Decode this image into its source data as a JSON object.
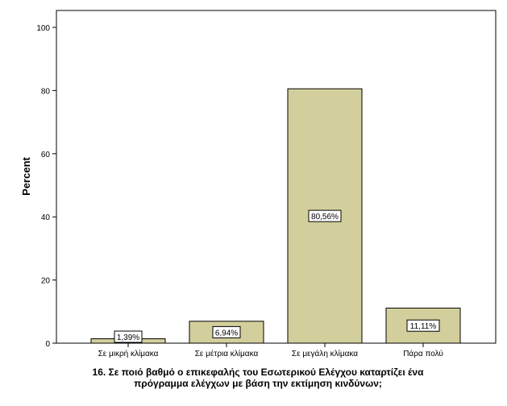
{
  "chart_data": {
    "type": "bar",
    "categories": [
      "Σε μικρή κλίμακα",
      "Σε μέτρια κλίμακα",
      "Σε μεγάλη κλίμακα",
      "Πάρα πολύ"
    ],
    "values": [
      1.39,
      6.94,
      80.56,
      11.11
    ],
    "data_labels": [
      "1,39%",
      "6,94%",
      "80,56%",
      "11,11%"
    ],
    "ylabel": "Percent",
    "xlabel": [
      "16. Σε ποιό βαθμό ο επικεφαλής του Εσωτερικού Ελέγχου καταρτίζει ένα",
      "πρόγραμμα ελέγχων με βάση την εκτίμηση κινδύνων;"
    ],
    "yticks": [
      "0",
      "20",
      "40",
      "60",
      "80",
      "100"
    ],
    "ylim": [
      0,
      100
    ],
    "bar_color": "#d3cf9c",
    "bar_edge_color": "#000000",
    "grid": false
  }
}
